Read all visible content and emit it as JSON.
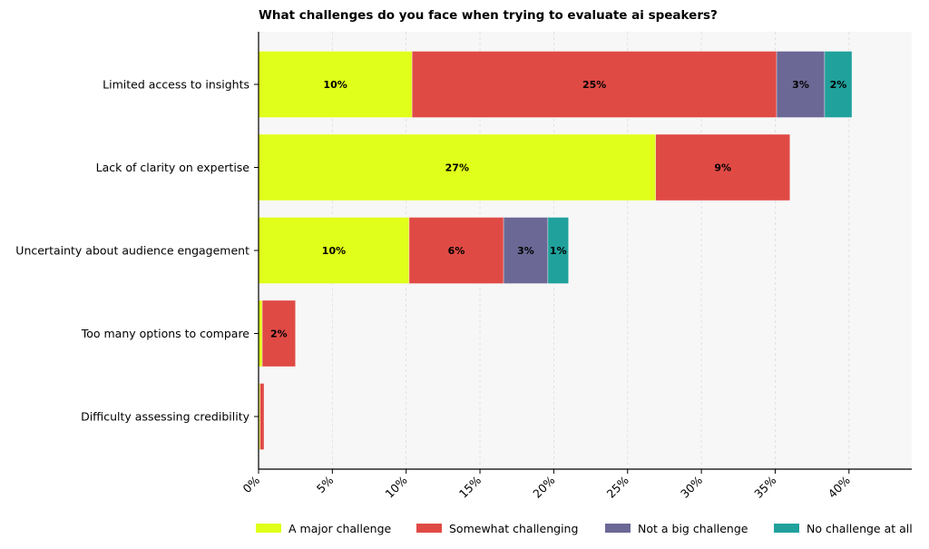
{
  "chart_data": {
    "type": "bar",
    "orientation": "horizontal",
    "stacked": true,
    "title": "What challenges do you face when trying to evaluate ai speakers?",
    "xlabel": "",
    "ylabel": "",
    "xlim": [
      0,
      44
    ],
    "x_ticks": [
      "0%",
      "5%",
      "10%",
      "15%",
      "20%",
      "25%",
      "30%",
      "35%",
      "40%"
    ],
    "x_tick_values": [
      0,
      5,
      10,
      15,
      20,
      25,
      30,
      35,
      40
    ],
    "grid": "vertical dashed",
    "legend_position": "bottom",
    "categories": [
      "Limited access to insights",
      "Lack of clarity on expertise",
      "Uncertainty about audience engagement",
      "Too many options to compare",
      "Difficulty assessing credibility"
    ],
    "series": [
      {
        "name": "A major challenge",
        "color": "#e0ff1a",
        "values": [
          10.4,
          26.9,
          10.2,
          0.25,
          0.1
        ],
        "labels": [
          "10%",
          "27%",
          "10%",
          "",
          ""
        ]
      },
      {
        "name": "Somewhat challenging",
        "color": "#e04a45",
        "values": [
          24.7,
          9.1,
          6.4,
          2.25,
          0.27
        ],
        "labels": [
          "25%",
          "9%",
          "6%",
          "2%",
          ""
        ]
      },
      {
        "name": "Not a big challenge",
        "color": "#6b6896",
        "values": [
          3.25,
          0,
          3.0,
          0,
          0
        ],
        "labels": [
          "3%",
          "",
          "3%",
          "",
          ""
        ]
      },
      {
        "name": "No challenge at all",
        "color": "#20a19c",
        "values": [
          1.85,
          0,
          1.4,
          0,
          0
        ],
        "labels": [
          "2%",
          "",
          "1%",
          "",
          ""
        ]
      }
    ]
  }
}
